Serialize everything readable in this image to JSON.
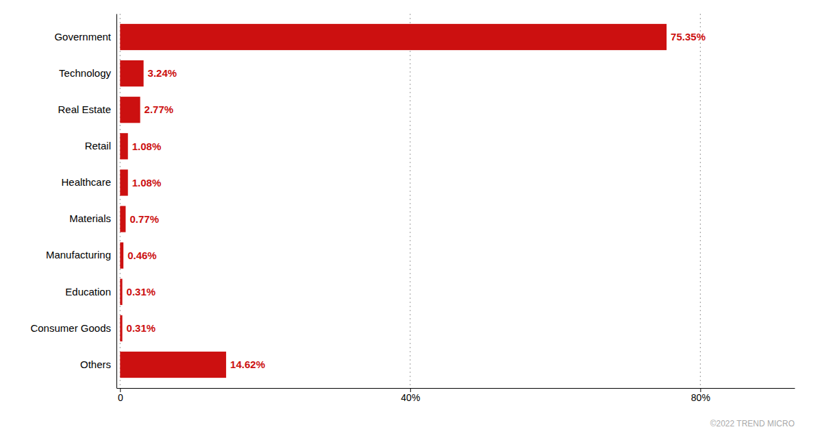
{
  "chart_data": {
    "type": "bar",
    "orientation": "horizontal",
    "categories": [
      "Others",
      "Consumer Goods",
      "Education",
      "Manufacturing",
      "Materials",
      "Healthcare",
      "Retail",
      "Real Estate",
      "Technology",
      "Government"
    ],
    "values": [
      14.62,
      0.31,
      0.31,
      0.46,
      0.77,
      1.08,
      1.08,
      2.77,
      3.24,
      75.35
    ],
    "value_labels": [
      "14.62%",
      "0.31%",
      "0.31%",
      "0.46%",
      "0.77%",
      "1.08%",
      "1.08%",
      "2.77%",
      "3.24%",
      "75.35%"
    ],
    "data_labels": true,
    "color": "#CC1010",
    "xlim": [
      -0.5,
      93
    ],
    "xticks": [
      0,
      {
        "value": 40,
        "label": "40%"
      },
      {
        "value": 80,
        "label": "80%"
      }
    ],
    "grid": true,
    "annotations": [
      "©2022 TREND MICRO"
    ]
  }
}
